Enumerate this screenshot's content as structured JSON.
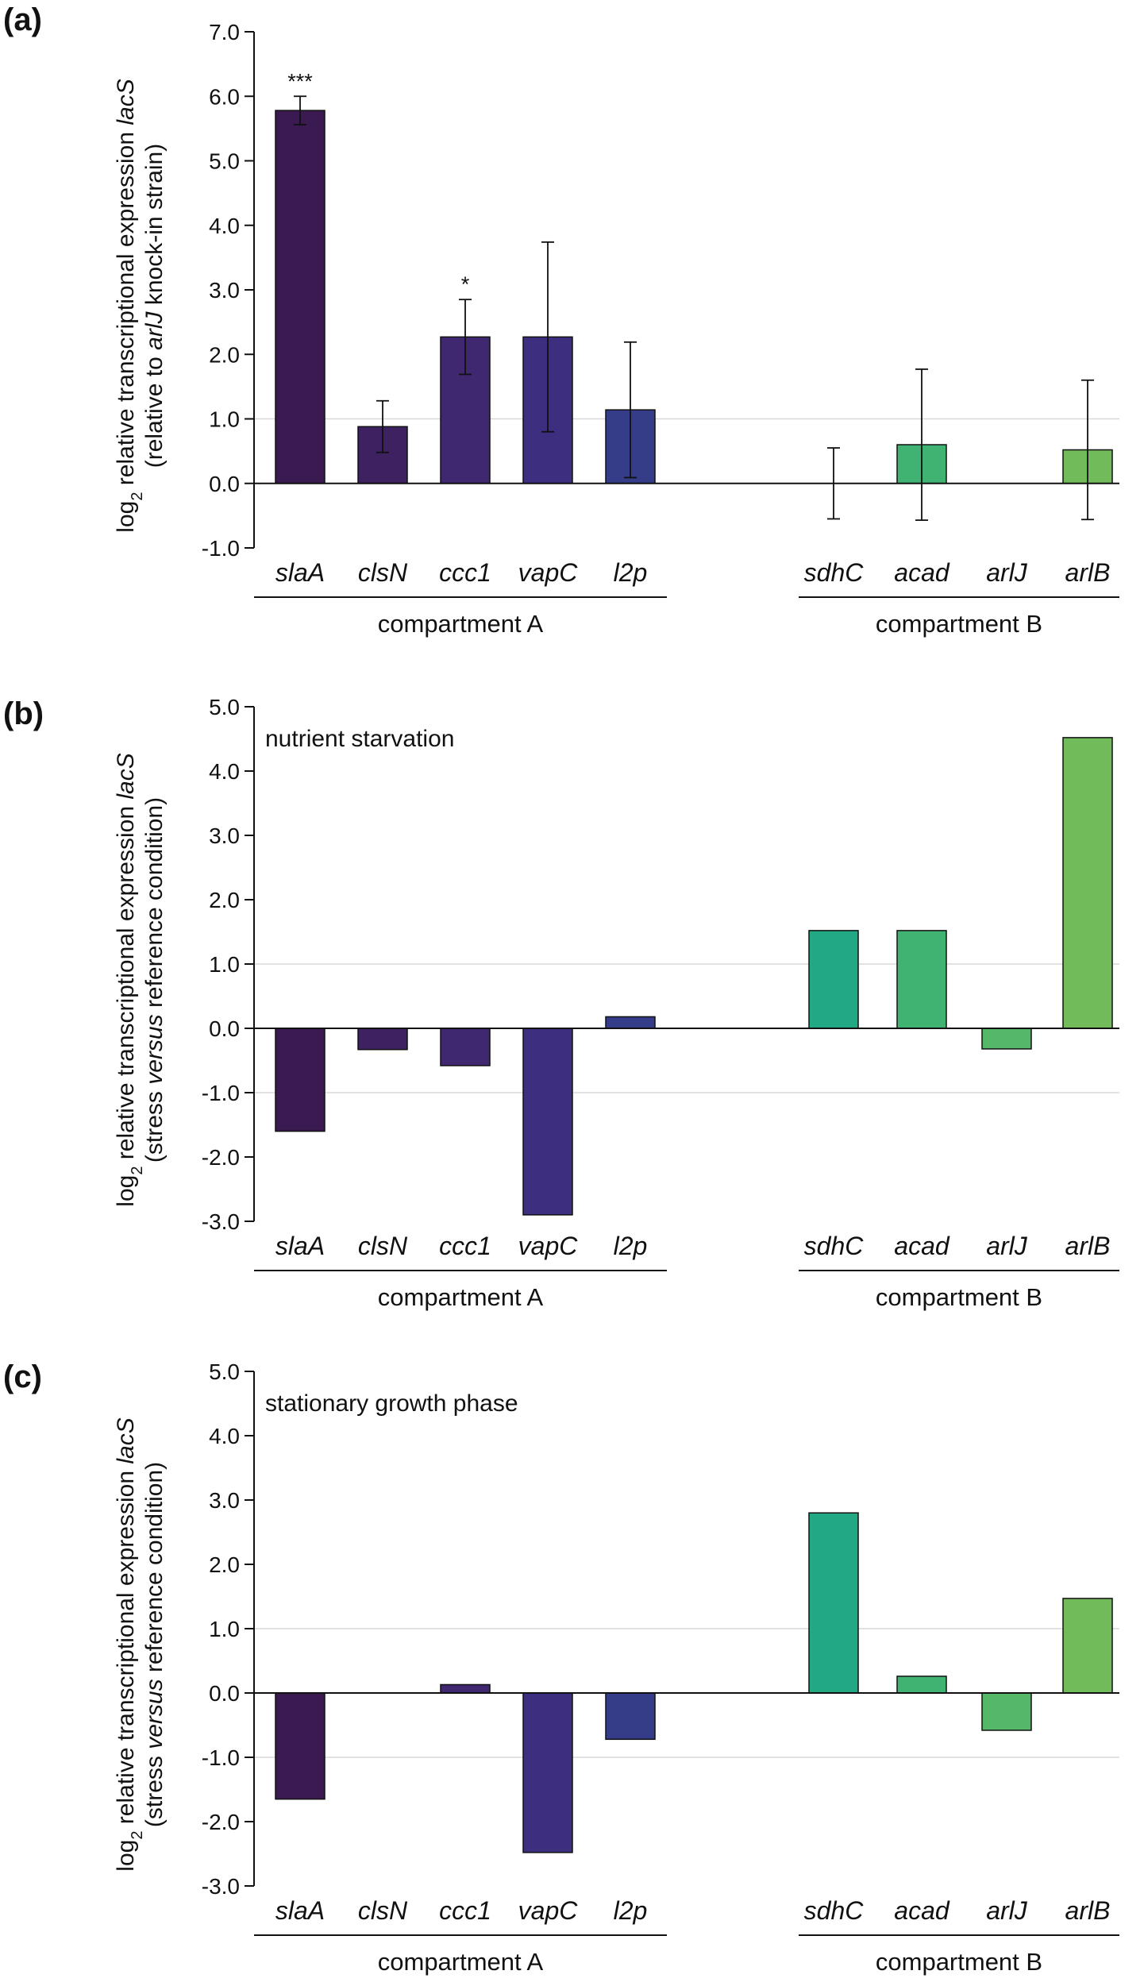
{
  "chart_data": [
    {
      "panel": "(a)",
      "type": "bar",
      "ylabel": {
        "line1": [
          "log",
          "2",
          " relative transcriptional expression ",
          "lacS"
        ],
        "line2": [
          "(relative to ",
          "arlJ",
          " knock-in strain)"
        ]
      },
      "ylim": [
        -1.0,
        7.0
      ],
      "yticks": [
        7.0,
        6.0,
        5.0,
        4.0,
        3.0,
        2.0,
        1.0,
        0.0,
        -1.0
      ],
      "ytick_labels": [
        "7.0",
        "6.0",
        "5.0",
        "4.0",
        "3.0",
        "2.0",
        "1.0",
        "0.0",
        "-1.0"
      ],
      "annotation": "",
      "categories": [
        "slaA",
        "clsN",
        "ccc1",
        "vapC",
        "l2p",
        "sdhC",
        "acad",
        "arlJ",
        "arlB"
      ],
      "values": [
        5.78,
        0.88,
        2.27,
        2.27,
        1.14,
        0.0,
        0.6,
        0.0,
        0.52
      ],
      "errors": [
        0.22,
        0.4,
        0.58,
        1.47,
        1.05,
        0.55,
        1.17,
        0.0,
        1.08
      ],
      "significance": [
        "***",
        "",
        "*",
        "",
        "",
        "",
        "",
        "",
        ""
      ],
      "groups": [
        {
          "label": "compartment A",
          "categories": [
            "slaA",
            "clsN",
            "ccc1",
            "vapC",
            "l2p"
          ]
        },
        {
          "label": "compartment B",
          "categories": [
            "sdhC",
            "acad",
            "arlJ",
            "arlB"
          ]
        }
      ]
    },
    {
      "panel": "(b)",
      "type": "bar",
      "ylabel": {
        "line1": [
          "log",
          "2",
          " relative transcriptional expression ",
          "lacS"
        ],
        "line2": [
          "(stress ",
          "versus",
          " reference condition)"
        ]
      },
      "ylim": [
        -3.0,
        5.0
      ],
      "yticks": [
        5.0,
        4.0,
        3.0,
        2.0,
        1.0,
        0.0,
        -1.0,
        -2.0,
        -3.0
      ],
      "ytick_labels": [
        "5.0",
        "4.0",
        "3.0",
        "2.0",
        "1.0",
        "0.0",
        "-1.0",
        "-2.0",
        "-3.0"
      ],
      "annotation": "nutrient starvation",
      "categories": [
        "slaA",
        "clsN",
        "ccc1",
        "vapC",
        "l2p",
        "sdhC",
        "acad",
        "arlJ",
        "arlB"
      ],
      "values": [
        -1.6,
        -0.33,
        -0.58,
        -2.9,
        0.18,
        1.52,
        1.52,
        -0.32,
        4.52
      ],
      "groups": [
        {
          "label": "compartment A",
          "categories": [
            "slaA",
            "clsN",
            "ccc1",
            "vapC",
            "l2p"
          ]
        },
        {
          "label": "compartment B",
          "categories": [
            "sdhC",
            "acad",
            "arlJ",
            "arlB"
          ]
        }
      ]
    },
    {
      "panel": "(c)",
      "type": "bar",
      "ylabel": {
        "line1": [
          "log",
          "2",
          " relative transcriptional expression ",
          "lacS"
        ],
        "line2": [
          "(stress ",
          "versus",
          " reference condition)"
        ]
      },
      "ylim": [
        -3.0,
        5.0
      ],
      "yticks": [
        5.0,
        4.0,
        3.0,
        2.0,
        1.0,
        0.0,
        -1.0,
        -2.0,
        -3.0
      ],
      "ytick_labels": [
        "5.0",
        "4.0",
        "3.0",
        "2.0",
        "1.0",
        "0.0",
        "-1.0",
        "-2.0",
        "-3.0"
      ],
      "annotation": "stationary growth phase",
      "categories": [
        "slaA",
        "clsN",
        "ccc1",
        "vapC",
        "l2p",
        "sdhC",
        "acad",
        "arlJ",
        "arlB"
      ],
      "values": [
        -1.65,
        0.0,
        0.13,
        -2.48,
        -0.72,
        2.8,
        0.26,
        -0.58,
        1.47
      ],
      "groups": [
        {
          "label": "compartment A",
          "categories": [
            "slaA",
            "clsN",
            "ccc1",
            "vapC",
            "l2p"
          ]
        },
        {
          "label": "compartment B",
          "categories": [
            "sdhC",
            "acad",
            "arlJ",
            "arlB"
          ]
        }
      ]
    }
  ],
  "colors": {
    "bars": [
      "#3a1a50",
      "#3d2160",
      "#3f2870",
      "#3e2e80",
      "#353c88",
      "#22a882",
      "#40b372",
      "#55b868",
      "#72bb5a"
    ],
    "axis": "#111111",
    "grid": "#d8d8d8",
    "bar_stroke": "#111111"
  }
}
